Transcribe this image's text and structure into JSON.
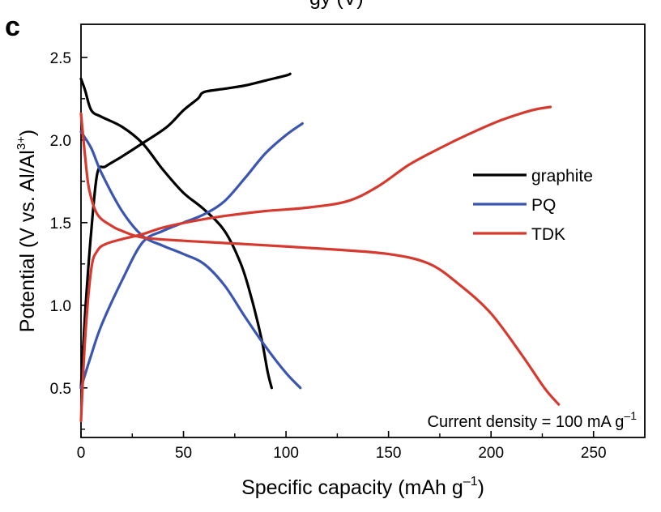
{
  "panel_label": "c",
  "top_cut_title": "gy (V)",
  "chart_data": {
    "type": "line",
    "xlabel": "Specific capacity (mAh g",
    "xlabel_sup": "–1",
    "xlabel_end": ")",
    "ylabel": "Potential (V vs. Al/Al",
    "ylabel_sup": "3+",
    "ylabel_end": ")",
    "xlim": [
      0,
      275
    ],
    "ylim": [
      0.2,
      2.7
    ],
    "xticks": [
      0,
      50,
      100,
      150,
      200,
      250
    ],
    "xtick_labels": [
      "0",
      "50",
      "100",
      "150",
      "200",
      "250"
    ],
    "yticks": [
      0.5,
      1.0,
      1.5,
      2.0,
      2.5
    ],
    "ytick_labels": [
      "0.5",
      "1.0",
      "1.5",
      "2.0",
      "2.5"
    ],
    "grid": false,
    "legend_position": "right",
    "annotation": "Current density = 100 mA g",
    "annotation_sup": "–1",
    "series": [
      {
        "name": "graphite",
        "color": "#000000",
        "curves": [
          [
            [
              0,
              2.37
            ],
            [
              2,
              2.3
            ],
            [
              5,
              2.18
            ],
            [
              10,
              2.14
            ],
            [
              20,
              2.08
            ],
            [
              30,
              1.98
            ],
            [
              40,
              1.82
            ],
            [
              50,
              1.68
            ],
            [
              60,
              1.58
            ],
            [
              70,
              1.45
            ],
            [
              78,
              1.25
            ],
            [
              83,
              1.05
            ],
            [
              88,
              0.8
            ],
            [
              91,
              0.6
            ],
            [
              93,
              0.5
            ]
          ],
          [
            [
              0,
              0.5
            ],
            [
              2,
              0.95
            ],
            [
              5,
              1.45
            ],
            [
              8,
              1.8
            ],
            [
              12,
              1.84
            ],
            [
              20,
              1.9
            ],
            [
              30,
              1.98
            ],
            [
              42,
              2.08
            ],
            [
              50,
              2.18
            ],
            [
              57,
              2.25
            ],
            [
              60,
              2.29
            ],
            [
              70,
              2.31
            ],
            [
              80,
              2.33
            ],
            [
              90,
              2.36
            ],
            [
              100,
              2.39
            ],
            [
              102,
              2.4
            ]
          ]
        ]
      },
      {
        "name": "PQ",
        "color": "#3a56b0",
        "curves": [
          [
            [
              0,
              2.05
            ],
            [
              5,
              1.95
            ],
            [
              10,
              1.8
            ],
            [
              20,
              1.57
            ],
            [
              30,
              1.42
            ],
            [
              40,
              1.36
            ],
            [
              50,
              1.31
            ],
            [
              60,
              1.25
            ],
            [
              70,
              1.12
            ],
            [
              80,
              0.93
            ],
            [
              90,
              0.75
            ],
            [
              100,
              0.59
            ],
            [
              107,
              0.5
            ]
          ],
          [
            [
              0,
              0.5
            ],
            [
              5,
              0.7
            ],
            [
              10,
              0.88
            ],
            [
              20,
              1.15
            ],
            [
              30,
              1.38
            ],
            [
              40,
              1.45
            ],
            [
              50,
              1.5
            ],
            [
              60,
              1.55
            ],
            [
              70,
              1.63
            ],
            [
              80,
              1.77
            ],
            [
              90,
              1.92
            ],
            [
              100,
              2.03
            ],
            [
              108,
              2.1
            ]
          ]
        ]
      },
      {
        "name": "TDK",
        "color": "#d63a2f",
        "curves": [
          [
            [
              0,
              2.16
            ],
            [
              2,
              1.9
            ],
            [
              4,
              1.7
            ],
            [
              8,
              1.55
            ],
            [
              15,
              1.48
            ],
            [
              20,
              1.45
            ],
            [
              30,
              1.41
            ],
            [
              50,
              1.39
            ],
            [
              80,
              1.37
            ],
            [
              120,
              1.34
            ],
            [
              150,
              1.31
            ],
            [
              170,
              1.25
            ],
            [
              185,
              1.12
            ],
            [
              200,
              0.95
            ],
            [
              215,
              0.7
            ],
            [
              226,
              0.5
            ],
            [
              233,
              0.4
            ]
          ],
          [
            [
              0,
              0.3
            ],
            [
              2,
              0.8
            ],
            [
              5,
              1.22
            ],
            [
              8,
              1.33
            ],
            [
              12,
              1.37
            ],
            [
              20,
              1.4
            ],
            [
              30,
              1.43
            ],
            [
              40,
              1.47
            ],
            [
              55,
              1.51
            ],
            [
              70,
              1.54
            ],
            [
              90,
              1.57
            ],
            [
              110,
              1.59
            ],
            [
              130,
              1.63
            ],
            [
              145,
              1.72
            ],
            [
              160,
              1.85
            ],
            [
              175,
              1.95
            ],
            [
              190,
              2.04
            ],
            [
              205,
              2.12
            ],
            [
              220,
              2.18
            ],
            [
              229,
              2.2
            ]
          ]
        ]
      }
    ]
  }
}
